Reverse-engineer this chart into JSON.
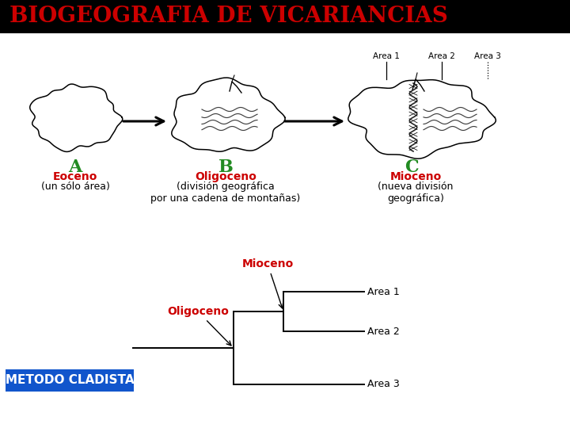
{
  "title": "BIOGEOGRAFIA DE VICARIANCIAS",
  "title_color": "#cc0000",
  "title_bg": "#000000",
  "title_fontsize": 20,
  "label_A": "A",
  "label_B": "B",
  "label_C": "C",
  "label_color": "#228B22",
  "label_fontsize": 16,
  "eoceno_label": "Eoceno",
  "eoceno_sub": "(un sólo área)",
  "oligoceno_label": "Oligoceno",
  "oligoceno_sub": "(división geográfica\npor una cadena de montañas)",
  "mioceno_label": "Mioceno",
  "mioceno_sub": "(nueva división\ngeográfica)",
  "epoch_color": "#cc0000",
  "epoch_fontsize": 10,
  "sub_fontsize": 9,
  "area1_label": "Area 1",
  "area2_label": "Area 2",
  "area3_label": "Area 3",
  "mioceno_tree_label": "Mioceno",
  "oligoceno_tree_label": "Oligoceno",
  "cladista_label": "(METODO CLADISTA)",
  "cladista_bg": "#1155cc",
  "cladista_text_color": "#ffffff",
  "cladista_fontsize": 11,
  "tree_fontsize": 9,
  "background_color": "#ffffff",
  "title_bar_height": 42,
  "fig_w": 7.2,
  "fig_h": 5.4,
  "dpi": 100
}
